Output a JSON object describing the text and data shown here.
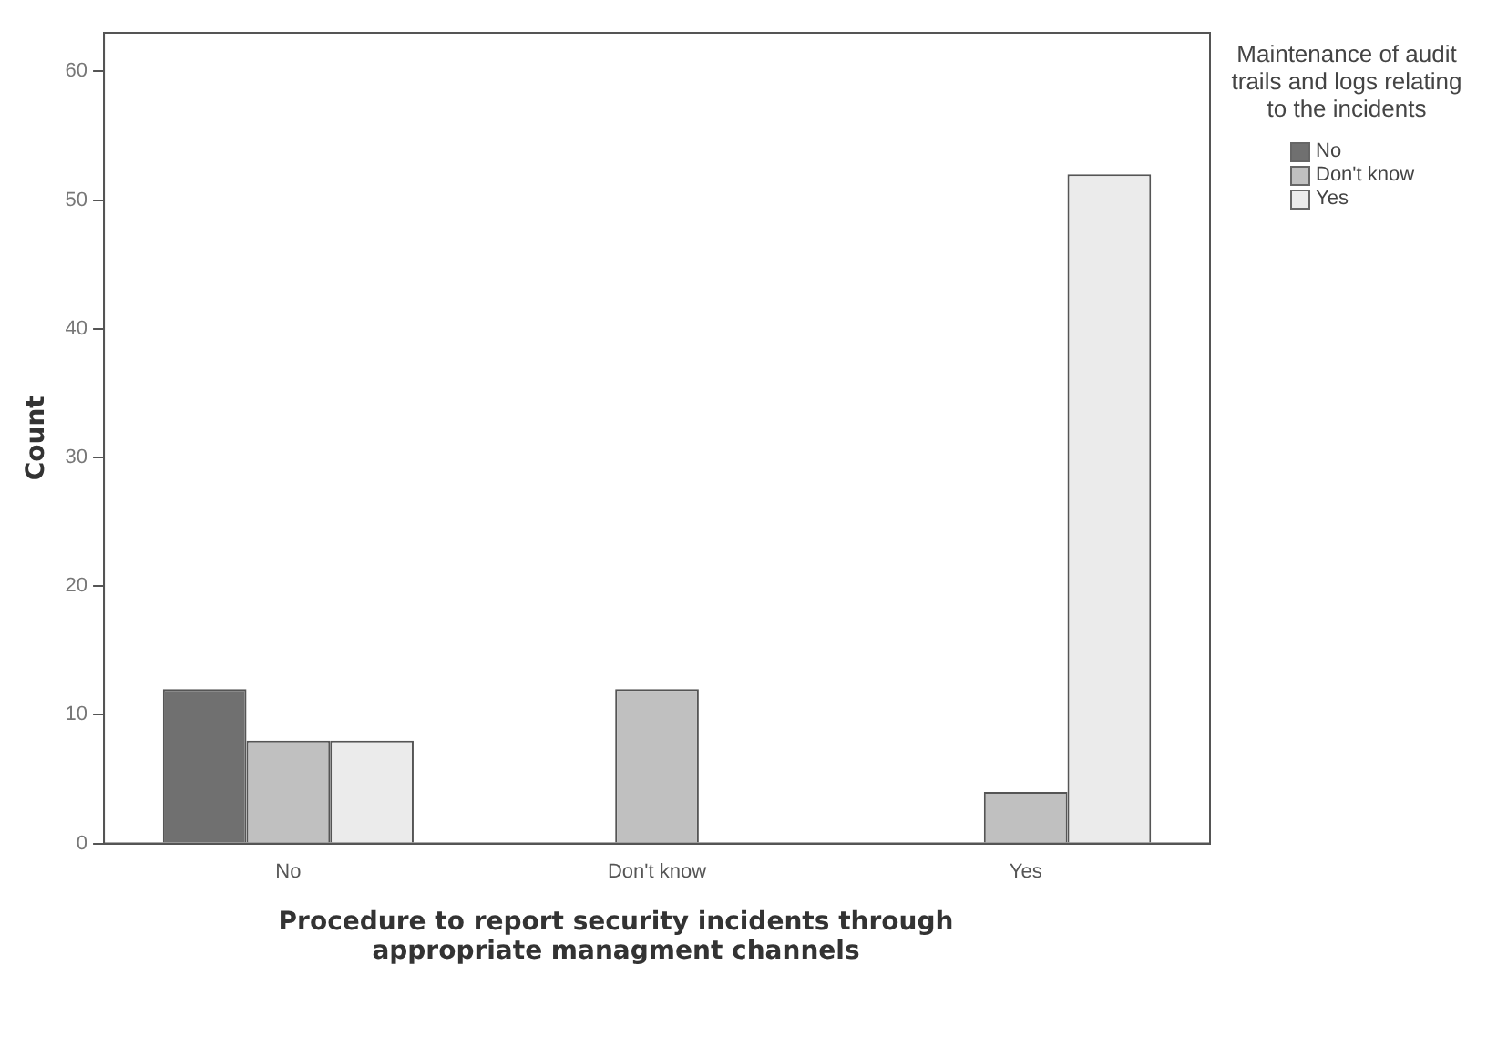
{
  "chart_data": {
    "type": "bar",
    "xlabel": "Procedure to report security incidents through appropriate managment channels",
    "ylabel": "Count",
    "legend_title": "Maintenance of audit trails and logs relating to the incidents",
    "legend": "top right",
    "grid": false,
    "categories": [
      "No",
      "Don't know",
      "Yes"
    ],
    "series": [
      {
        "name": "No",
        "color": "#707070",
        "values": [
          12,
          0,
          0
        ]
      },
      {
        "name": "Don't know",
        "color": "#c0c0c0",
        "values": [
          8,
          12,
          4
        ]
      },
      {
        "name": "Yes",
        "color": "#ebebeb",
        "values": [
          8,
          0,
          52
        ]
      }
    ],
    "ylim": [
      0,
      63
    ],
    "yticks": [
      0,
      10,
      20,
      30,
      40,
      50,
      60
    ]
  }
}
